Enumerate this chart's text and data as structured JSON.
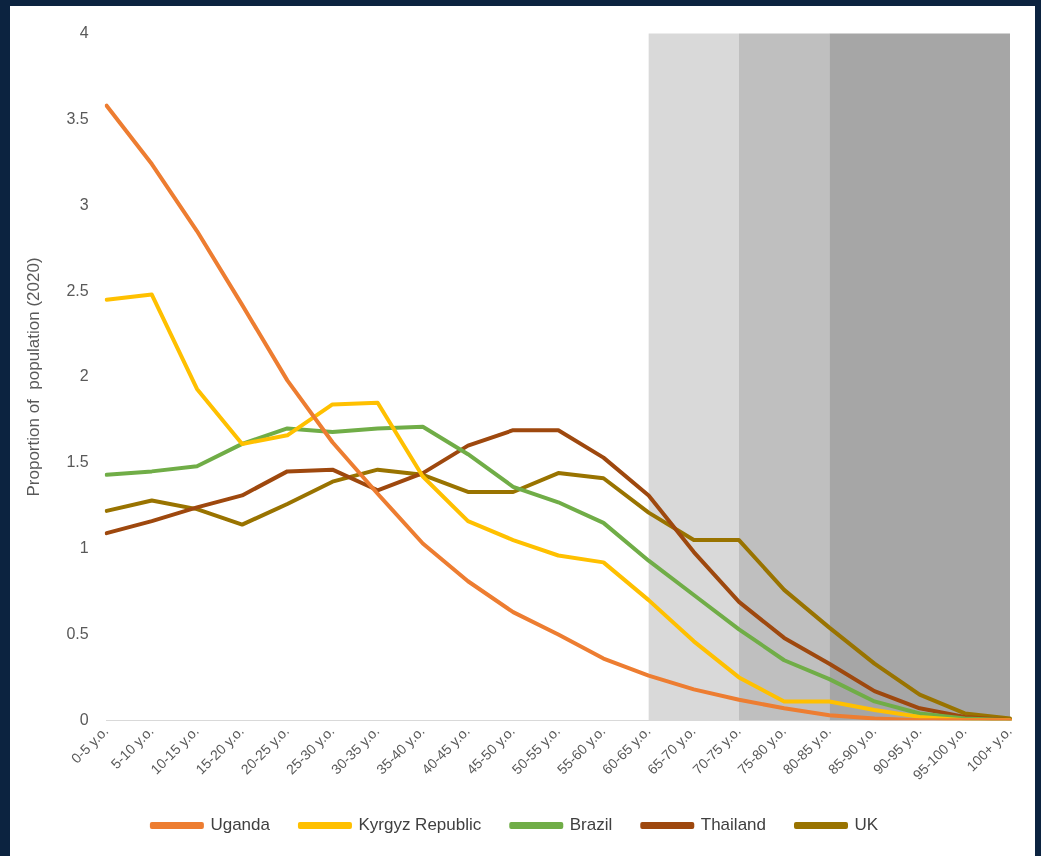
{
  "chart_data": {
    "type": "line",
    "ylabel": "Proportion of  population (2020)",
    "categories": [
      "0-5 y.o.",
      "5-10 y.o.",
      "10-15 y.o.",
      "15-20 y.o.",
      "20-25 y.o.",
      "25-30 y.o.",
      "30-35 y.o.",
      "35-40 y.o.",
      "40-45 y.o.",
      "45-50 y.o.",
      "50-55 y.o.",
      "55-60 y.o.",
      "60-65 y.o.",
      "65-70 y.o.",
      "70-75 y.o.",
      "75-80 y.o.",
      "80-85 y.o.",
      "85-90 y.o.",
      "90-95 y.o.",
      "95-100 y.o.",
      "100+ y.o."
    ],
    "series": [
      {
        "name": "Uganda",
        "color": "#ed7d31",
        "values": [
          3.58,
          3.24,
          2.85,
          2.42,
          1.98,
          1.62,
          1.32,
          1.03,
          0.81,
          0.63,
          0.5,
          0.36,
          0.26,
          0.18,
          0.12,
          0.07,
          0.03,
          0.01,
          0,
          0,
          0
        ]
      },
      {
        "name": "Kyrgyz Republic",
        "color": "#ffc000",
        "values": [
          2.45,
          2.48,
          1.93,
          1.61,
          1.66,
          1.84,
          1.85,
          1.42,
          1.16,
          1.05,
          0.96,
          0.92,
          0.7,
          0.46,
          0.25,
          0.11,
          0.11,
          0.06,
          0.02,
          0,
          0
        ]
      },
      {
        "name": "Brazil",
        "color": "#70ad47",
        "values": [
          1.43,
          1.45,
          1.48,
          1.61,
          1.7,
          1.68,
          1.7,
          1.71,
          1.55,
          1.36,
          1.27,
          1.15,
          0.93,
          0.73,
          0.53,
          0.35,
          0.24,
          0.11,
          0.04,
          0.01,
          0
        ]
      },
      {
        "name": "Thailand",
        "color": "#9e480e",
        "values": [
          1.09,
          1.16,
          1.24,
          1.31,
          1.45,
          1.46,
          1.34,
          1.44,
          1.6,
          1.69,
          1.69,
          1.53,
          1.31,
          0.98,
          0.69,
          0.48,
          0.33,
          0.17,
          0.07,
          0.02,
          0
        ]
      },
      {
        "name": "UK",
        "color": "#997300",
        "values": [
          1.22,
          1.28,
          1.23,
          1.14,
          1.26,
          1.39,
          1.46,
          1.43,
          1.33,
          1.33,
          1.44,
          1.41,
          1.21,
          1.05,
          1.05,
          0.76,
          0.54,
          0.33,
          0.15,
          0.04,
          0.01
        ]
      }
    ],
    "ylim": [
      0,
      4
    ],
    "yticks": [
      0,
      0.5,
      1,
      1.5,
      2,
      2.5,
      3,
      3.5,
      4
    ],
    "grid": false,
    "legend": "bottom",
    "bands": [
      {
        "axis": "x",
        "from": "60-65 y.o.",
        "to": "70-75 y.o.",
        "color": "#d9d9d9"
      },
      {
        "axis": "x",
        "from": "70-75 y.o.",
        "to": "80-85 y.o.",
        "color": "#bfbfbf"
      },
      {
        "axis": "x",
        "from": "80-85 y.o.",
        "to": "100+ y.o.",
        "color": "#a6a6a6"
      }
    ]
  }
}
